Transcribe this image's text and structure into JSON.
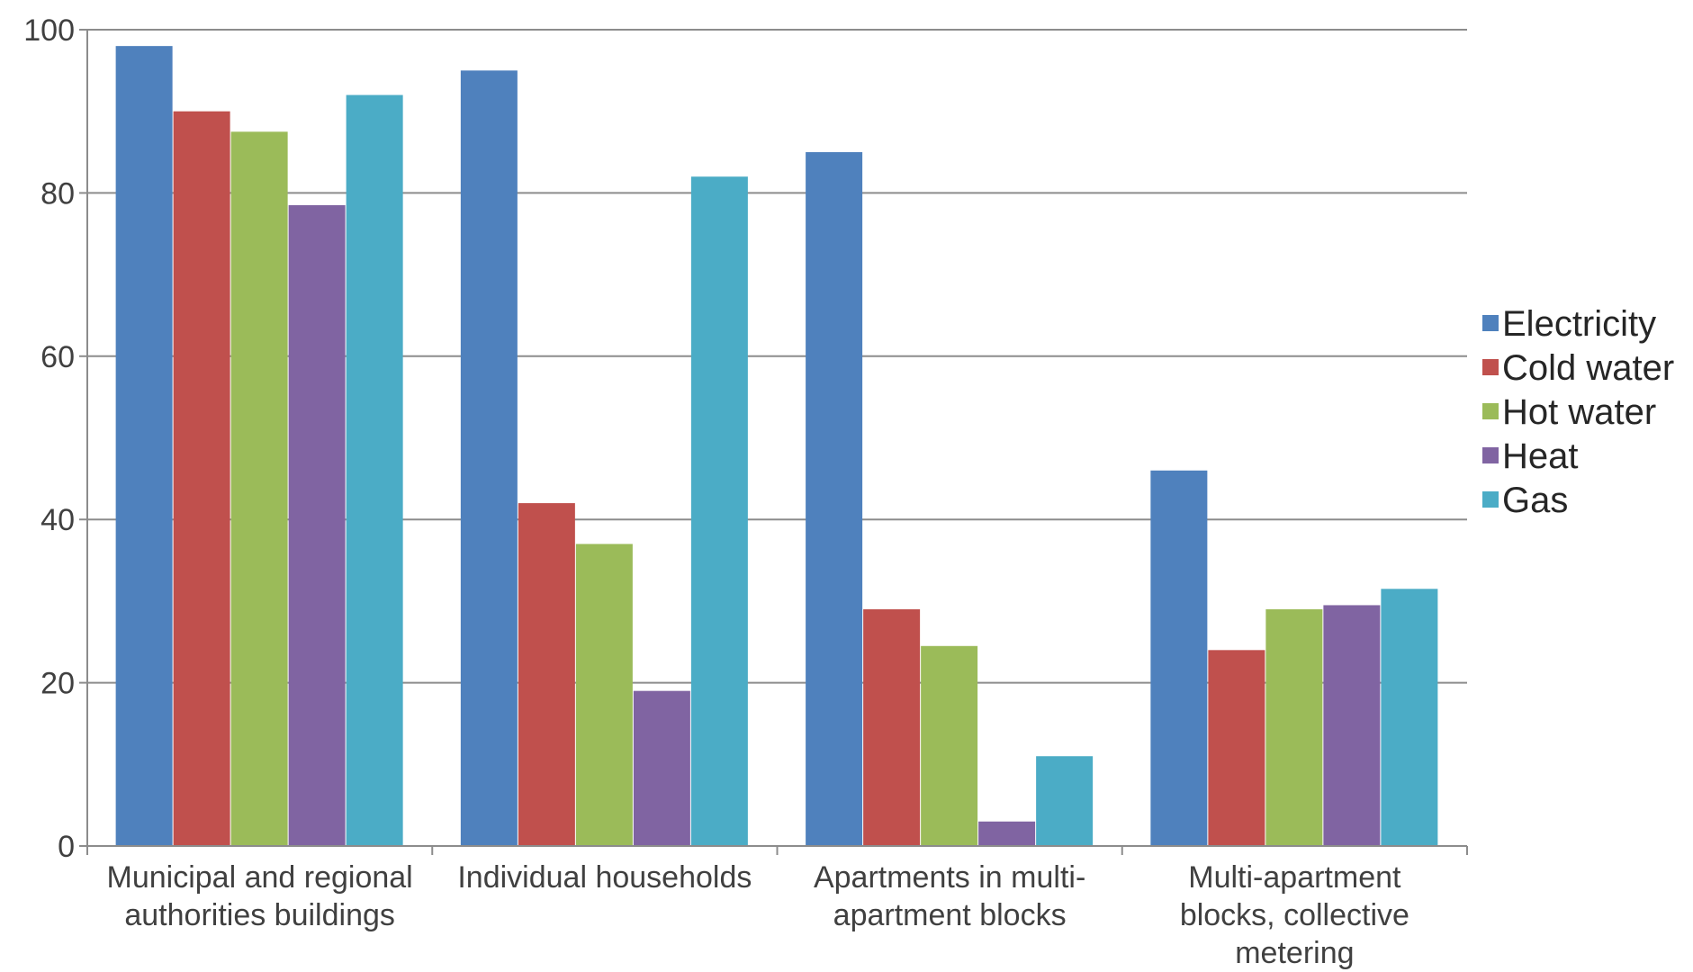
{
  "chart_data": {
    "type": "bar",
    "title": "",
    "xlabel": "",
    "ylabel": "",
    "ylim": [
      0,
      100
    ],
    "yticks": [
      0,
      20,
      40,
      60,
      80,
      100
    ],
    "grid": true,
    "legend_position": "right",
    "categories": [
      [
        "Municipal and regional",
        "authorities buildings"
      ],
      [
        "Individual households"
      ],
      [
        "Apartments in multi-",
        "apartment blocks"
      ],
      [
        "Multi-apartment",
        "blocks, collective",
        "metering"
      ]
    ],
    "series": [
      {
        "name": "Electricity",
        "color": "#4F81BD",
        "values": [
          98,
          95,
          85,
          46
        ]
      },
      {
        "name": "Cold water",
        "color": "#C0504D",
        "values": [
          90,
          42,
          29,
          24
        ]
      },
      {
        "name": "Hot water",
        "color": "#9BBB59",
        "values": [
          87.5,
          37,
          24.5,
          29
        ]
      },
      {
        "name": "Heat",
        "color": "#8064A2",
        "values": [
          78.5,
          19,
          3,
          29.5
        ]
      },
      {
        "name": "Gas",
        "color": "#4BACC6",
        "values": [
          92,
          82,
          11,
          31.5
        ]
      }
    ]
  }
}
